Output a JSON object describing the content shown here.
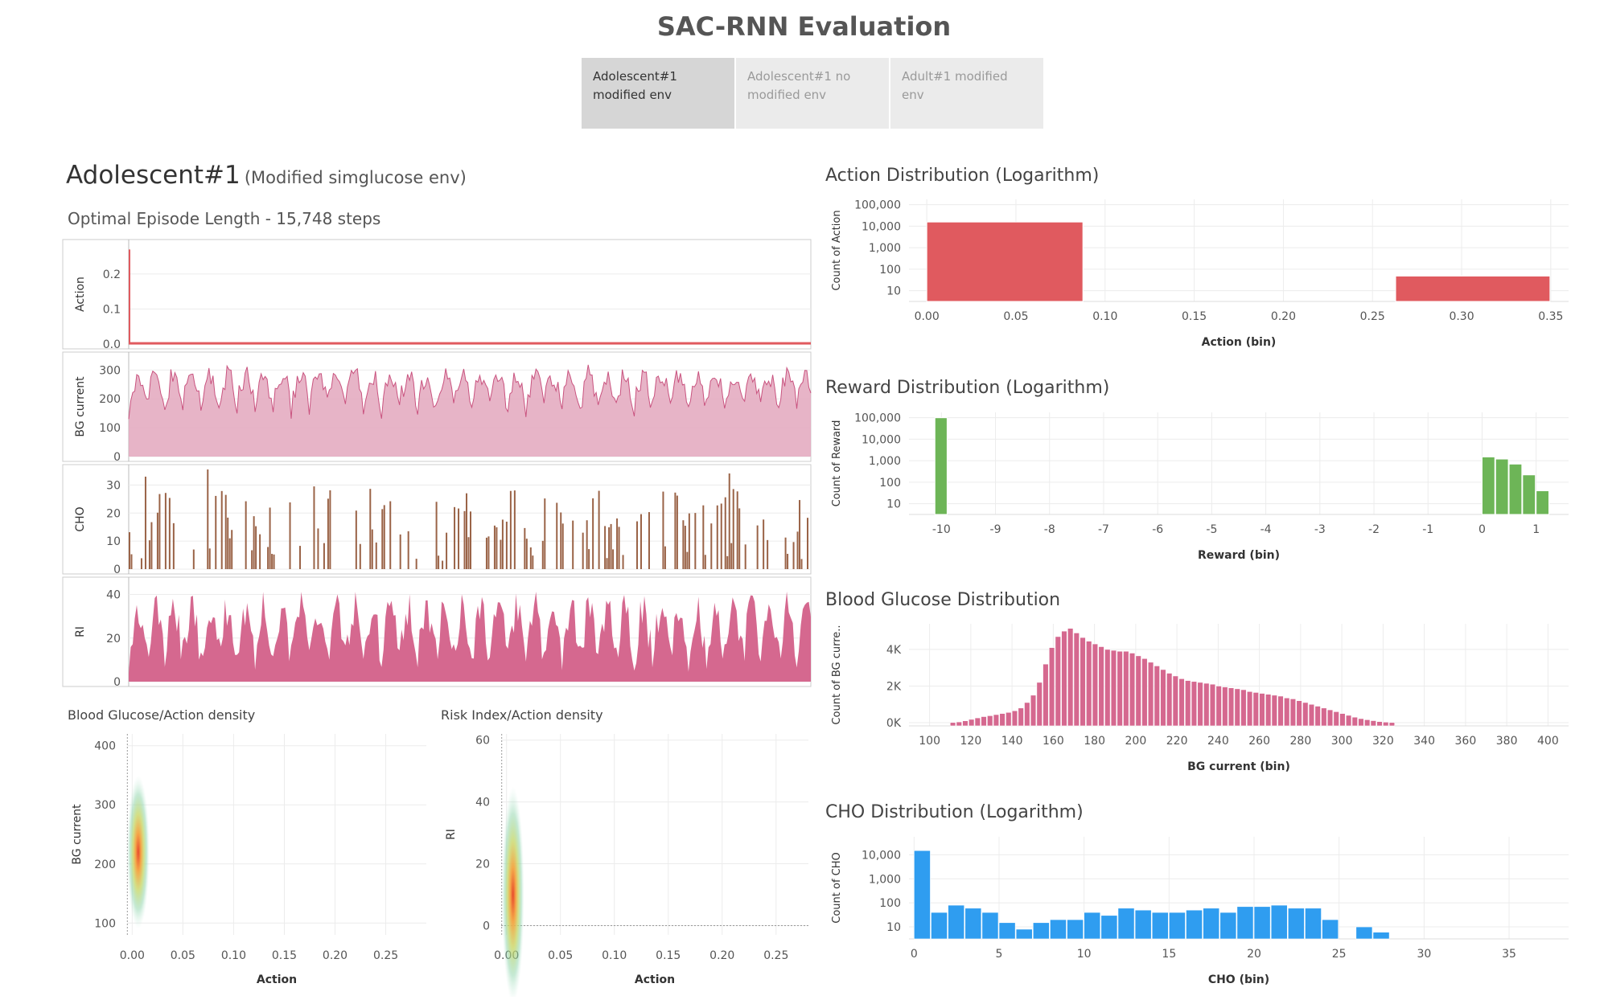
{
  "dashboard": {
    "title": "SAC-RNN Evaluation"
  },
  "tabs": [
    {
      "line1": "Adolescent#1",
      "line2": "modified env",
      "active": true
    },
    {
      "line1": "Adolescent#1 no",
      "line2": "modified env",
      "active": false
    },
    {
      "line1": "Adult#1 modified env",
      "line2": "",
      "active": false
    }
  ],
  "left": {
    "title_main": "Adolescent#1",
    "title_sub": "(Modified simglucose env)",
    "subtitle": "Optimal Episode Length - 15,748 steps"
  },
  "colors": {
    "action": "#e05a5f",
    "bg": "#e3a7bd",
    "bg_line": "#c9537f",
    "cho": "#9a6347",
    "ri": "#d5688f",
    "reward": "#6db557",
    "bg_hist": "#d5688f",
    "cho_hist": "#2f9df0",
    "grid": "#ececec",
    "axis_text": "#555555"
  },
  "chart_data": [
    {
      "id": "timeseries",
      "type": "line",
      "panels": [
        {
          "ylabel": "Action",
          "ticks": [
            "0.0",
            "0.1",
            "0.2"
          ],
          "ylim": [
            0,
            0.28
          ],
          "style": "spike"
        },
        {
          "ylabel": "BG current",
          "ticks": [
            "0",
            "100",
            "200",
            "300"
          ],
          "ylim": [
            0,
            340
          ],
          "style": "area",
          "typical_range": [
            100,
            320
          ]
        },
        {
          "ylabel": "CHO",
          "ticks": [
            "0",
            "10",
            "20",
            "30"
          ],
          "ylim": [
            0,
            35
          ],
          "style": "bars",
          "max": 34
        },
        {
          "ylabel": "RI",
          "ticks": [
            "0",
            "20",
            "40"
          ],
          "ylim": [
            0,
            45
          ],
          "style": "area",
          "max": 44
        }
      ],
      "x_steps": 15748
    },
    {
      "id": "bg-action-density",
      "type": "heatmap",
      "title": "Blood Glucose/Action density",
      "xlabel": "Action",
      "ylabel": "BG current",
      "xticks": [
        "0.00",
        "0.05",
        "0.10",
        "0.15",
        "0.20",
        "0.25"
      ],
      "yticks": [
        "100",
        "200",
        "300",
        "400"
      ],
      "xlim": [
        -0.005,
        0.29
      ],
      "ylim": [
        80,
        420
      ],
      "density_center": [
        0.006,
        220
      ],
      "density_range_y": [
        110,
        350
      ]
    },
    {
      "id": "ri-action-density",
      "type": "heatmap",
      "title": "Risk Index/Action density",
      "xlabel": "Action",
      "ylabel": "RI",
      "xticks": [
        "0.00",
        "0.05",
        "0.10",
        "0.15",
        "0.20",
        "0.25"
      ],
      "yticks": [
        "0",
        "20",
        "40",
        "60"
      ],
      "xlim": [
        -0.005,
        0.28
      ],
      "ylim": [
        -3,
        62
      ],
      "density_center": [
        0.006,
        10
      ],
      "density_range_y": [
        0,
        45
      ]
    },
    {
      "id": "action-dist",
      "type": "bar",
      "title": "Action Distribution (Logarithm)",
      "xlabel": "Action (bin)",
      "ylabel": "Count of Action",
      "scale": "log",
      "xticks": [
        "0.00",
        "0.05",
        "0.10",
        "0.15",
        "0.20",
        "0.25",
        "0.30",
        "0.35"
      ],
      "yticks": [
        "10",
        "100",
        "1,000",
        "10,000",
        "100,000"
      ],
      "xlim": [
        -0.01,
        0.36
      ],
      "bars": [
        {
          "x0": 0.0,
          "x1": 0.088,
          "count": 15700
        },
        {
          "x0": 0.263,
          "x1": 0.35,
          "count": 48
        }
      ]
    },
    {
      "id": "reward-dist",
      "type": "bar",
      "title": "Reward Distribution (Logarithm)",
      "xlabel": "Reward (bin)",
      "ylabel": "Count of Reward",
      "scale": "log",
      "xticks": [
        "-10",
        "-9",
        "-8",
        "-7",
        "-6",
        "-5",
        "-4",
        "-3",
        "-2",
        "-1",
        "0",
        "1"
      ],
      "yticks": [
        "10",
        "100",
        "1,000",
        "10,000",
        "100,000"
      ],
      "xlim": [
        -10.6,
        1.6
      ],
      "bars": [
        {
          "x0": -10.12,
          "x1": -9.88,
          "count": 100000
        },
        {
          "x0": 0.0,
          "x1": 0.25,
          "count": 1500
        },
        {
          "x0": 0.25,
          "x1": 0.5,
          "count": 1200
        },
        {
          "x0": 0.5,
          "x1": 0.75,
          "count": 700
        },
        {
          "x0": 0.75,
          "x1": 1.0,
          "count": 220
        },
        {
          "x0": 1.0,
          "x1": 1.25,
          "count": 40
        }
      ]
    },
    {
      "id": "bg-dist",
      "type": "bar",
      "title": "Blood Glucose Distribution",
      "xlabel": "BG current (bin)",
      "ylabel": "Count of BG curre..",
      "scale": "linear",
      "xticks": [
        "100",
        "120",
        "140",
        "160",
        "180",
        "200",
        "220",
        "240",
        "260",
        "280",
        "300",
        "320",
        "340",
        "360",
        "380",
        "400"
      ],
      "yticks": [
        "0K",
        "2K",
        "4K"
      ],
      "xlim": [
        90,
        410
      ],
      "ylim": [
        0,
        5400
      ],
      "bin_start": 110,
      "bin_width": 3,
      "values": [
        10,
        40,
        100,
        180,
        260,
        330,
        380,
        440,
        500,
        560,
        650,
        800,
        1100,
        1500,
        2200,
        3200,
        4100,
        4700,
        5000,
        5150,
        4900,
        4650,
        4450,
        4300,
        4150,
        4000,
        3950,
        3900,
        3900,
        3800,
        3650,
        3500,
        3300,
        3100,
        2900,
        2700,
        2550,
        2400,
        2300,
        2250,
        2200,
        2150,
        2100,
        2000,
        1950,
        1900,
        1850,
        1800,
        1700,
        1650,
        1600,
        1550,
        1500,
        1450,
        1350,
        1300,
        1200,
        1100,
        1000,
        900,
        800,
        700,
        600,
        500,
        400,
        300,
        220,
        160,
        110,
        60,
        30,
        10
      ]
    },
    {
      "id": "cho-dist",
      "type": "bar",
      "title": "CHO Distribution (Logarithm)",
      "xlabel": "CHO (bin)",
      "ylabel": "Count of CHO",
      "scale": "log",
      "xticks": [
        "0",
        "5",
        "10",
        "15",
        "20",
        "25",
        "30",
        "35"
      ],
      "yticks": [
        "10",
        "100",
        "1,000",
        "10,000"
      ],
      "xlim": [
        -0.3,
        38.5
      ],
      "bin_width": 1,
      "values": [
        15000,
        40,
        80,
        60,
        40,
        15,
        8,
        15,
        20,
        20,
        40,
        30,
        60,
        50,
        40,
        40,
        50,
        60,
        40,
        70,
        70,
        80,
        60,
        60,
        20,
        0,
        10,
        6
      ]
    }
  ]
}
